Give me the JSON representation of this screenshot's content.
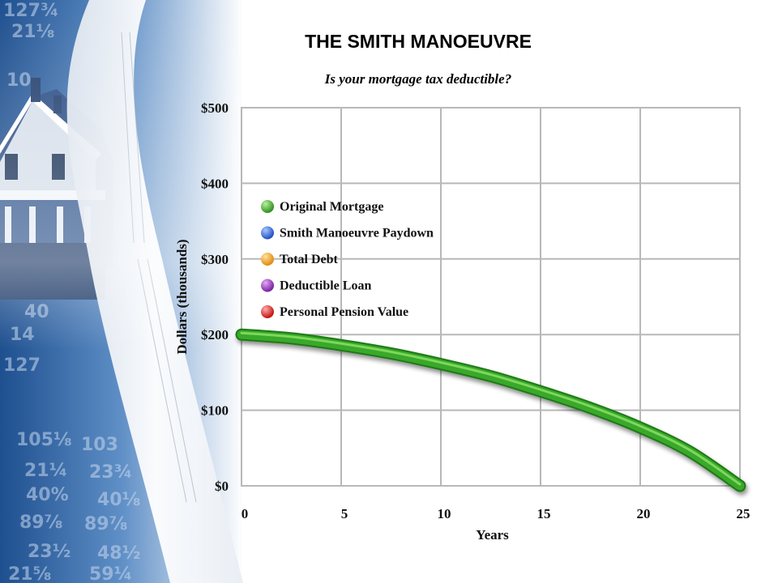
{
  "title": "THE SMITH MANOEUVRE",
  "subtitle": "Is your mortgage tax deductible?",
  "chart_data": {
    "type": "line",
    "title": "THE SMITH MANOEUVRE",
    "subtitle": "Is your mortgage tax deductible?",
    "xlabel": "Years",
    "ylabel": "Dollars (thousands)",
    "xlim": [
      0,
      25
    ],
    "ylim": [
      0,
      500
    ],
    "x_ticks": [
      "0",
      "5",
      "10",
      "15",
      "20",
      "25"
    ],
    "y_ticks": [
      "$0",
      "$100",
      "$200",
      "$300",
      "$400",
      "$500"
    ],
    "grid": true,
    "legend_position": "upper-left",
    "legend": [
      {
        "name": "Original Mortgage",
        "color": "#3aa82a"
      },
      {
        "name": "Smith Manoeuvre Paydown",
        "color": "#2f63d8"
      },
      {
        "name": "Total Debt",
        "color": "#f0a020"
      },
      {
        "name": "Deductible Loan",
        "color": "#9a2fb8"
      },
      {
        "name": "Personal Pension Value",
        "color": "#e02020"
      }
    ],
    "series": [
      {
        "name": "Original Mortgage",
        "color": "#3aa82a",
        "x": [
          0,
          2.5,
          5,
          7.5,
          10,
          12.5,
          15,
          17.5,
          20,
          22.5,
          25
        ],
        "values": [
          200,
          195,
          186,
          175,
          161,
          145,
          125,
          103,
          77,
          45,
          0
        ]
      }
    ]
  }
}
